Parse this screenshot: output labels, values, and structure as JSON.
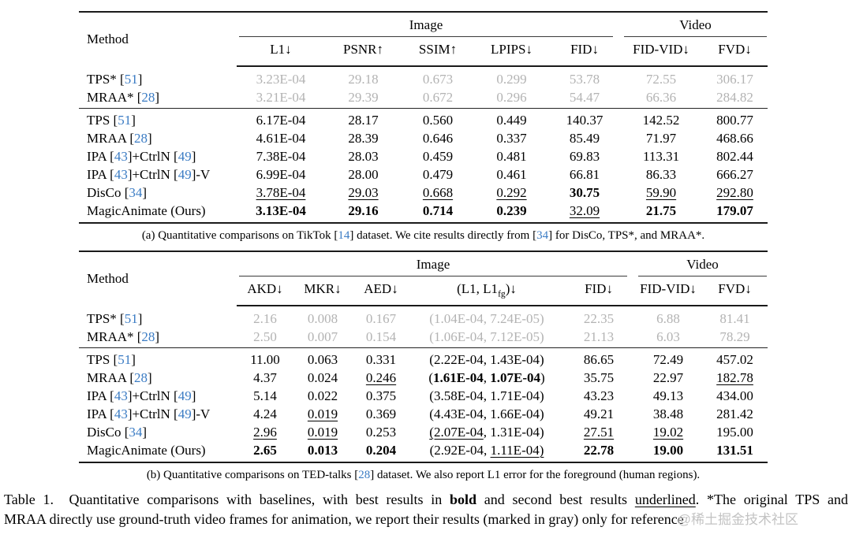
{
  "colors": {
    "cite_blue": "#3b7cc4",
    "gray_text": "#b3b3b3",
    "rule_dark": "#1a1a1a",
    "watermark_gray": "#c3c3c3"
  },
  "tables": [
    {
      "method_label": "Method",
      "group_image": "Image",
      "group_video": "Video",
      "columns": [
        [
          {
            "t": "L1↓"
          }
        ],
        [
          {
            "t": "PSNR↑"
          }
        ],
        [
          {
            "t": "SSIM↑"
          }
        ],
        [
          {
            "t": "LPIPS↓"
          }
        ],
        [
          {
            "t": "FID↓"
          }
        ],
        [
          {
            "t": "FID-VID↓"
          }
        ],
        [
          {
            "t": "FVD↓"
          }
        ]
      ],
      "rows_gray": [
        {
          "method": [
            {
              "t": "TPS* ["
            },
            {
              "t": "51",
              "cite": true
            },
            {
              "t": "]"
            }
          ],
          "cells": [
            [
              {
                "t": "3.23E-04"
              }
            ],
            [
              {
                "t": "29.18"
              }
            ],
            [
              {
                "t": "0.673"
              }
            ],
            [
              {
                "t": "0.299"
              }
            ],
            [
              {
                "t": "53.78"
              }
            ],
            [
              {
                "t": "72.55"
              }
            ],
            [
              {
                "t": "306.17"
              }
            ]
          ]
        },
        {
          "method": [
            {
              "t": "MRAA* ["
            },
            {
              "t": "28",
              "cite": true
            },
            {
              "t": "]"
            }
          ],
          "cells": [
            [
              {
                "t": "3.21E-04"
              }
            ],
            [
              {
                "t": "29.39"
              }
            ],
            [
              {
                "t": "0.672"
              }
            ],
            [
              {
                "t": "0.296"
              }
            ],
            [
              {
                "t": "54.47"
              }
            ],
            [
              {
                "t": "66.36"
              }
            ],
            [
              {
                "t": "284.82"
              }
            ]
          ]
        }
      ],
      "rows": [
        {
          "method": [
            {
              "t": "TPS ["
            },
            {
              "t": "51",
              "cite": true
            },
            {
              "t": "]"
            }
          ],
          "cells": [
            [
              {
                "t": "6.17E-04"
              }
            ],
            [
              {
                "t": "28.17"
              }
            ],
            [
              {
                "t": "0.560"
              }
            ],
            [
              {
                "t": "0.449"
              }
            ],
            [
              {
                "t": "140.37"
              }
            ],
            [
              {
                "t": "142.52"
              }
            ],
            [
              {
                "t": "800.77"
              }
            ]
          ]
        },
        {
          "method": [
            {
              "t": "MRAA ["
            },
            {
              "t": "28",
              "cite": true
            },
            {
              "t": "]"
            }
          ],
          "cells": [
            [
              {
                "t": "4.61E-04"
              }
            ],
            [
              {
                "t": "28.39"
              }
            ],
            [
              {
                "t": "0.646"
              }
            ],
            [
              {
                "t": "0.337"
              }
            ],
            [
              {
                "t": "85.49"
              }
            ],
            [
              {
                "t": "71.97"
              }
            ],
            [
              {
                "t": "468.66"
              }
            ]
          ]
        },
        {
          "method": [
            {
              "t": "IPA ["
            },
            {
              "t": "43",
              "cite": true
            },
            {
              "t": "]+CtrlN ["
            },
            {
              "t": "49",
              "cite": true
            },
            {
              "t": "]"
            }
          ],
          "cells": [
            [
              {
                "t": "7.38E-04"
              }
            ],
            [
              {
                "t": "28.03"
              }
            ],
            [
              {
                "t": "0.459"
              }
            ],
            [
              {
                "t": "0.481"
              }
            ],
            [
              {
                "t": "69.83"
              }
            ],
            [
              {
                "t": "113.31"
              }
            ],
            [
              {
                "t": "802.44"
              }
            ]
          ]
        },
        {
          "method": [
            {
              "t": "IPA ["
            },
            {
              "t": "43",
              "cite": true
            },
            {
              "t": "]+CtrlN ["
            },
            {
              "t": "49",
              "cite": true
            },
            {
              "t": "]-V"
            }
          ],
          "cells": [
            [
              {
                "t": "6.99E-04"
              }
            ],
            [
              {
                "t": "28.00"
              }
            ],
            [
              {
                "t": "0.479"
              }
            ],
            [
              {
                "t": "0.461"
              }
            ],
            [
              {
                "t": "66.81"
              }
            ],
            [
              {
                "t": "86.33"
              }
            ],
            [
              {
                "t": "666.27"
              }
            ]
          ]
        },
        {
          "method": [
            {
              "t": "DisCo ["
            },
            {
              "t": "34",
              "cite": true
            },
            {
              "t": "]"
            }
          ],
          "cells": [
            [
              {
                "t": "3.78E-04",
                "u": true
              }
            ],
            [
              {
                "t": "29.03",
                "u": true
              }
            ],
            [
              {
                "t": "0.668",
                "u": true
              }
            ],
            [
              {
                "t": "0.292",
                "u": true
              }
            ],
            [
              {
                "t": "30.75",
                "b": true
              }
            ],
            [
              {
                "t": "59.90",
                "u": true
              }
            ],
            [
              {
                "t": "292.80",
                "u": true
              }
            ]
          ]
        },
        {
          "method": [
            {
              "t": "MagicAnimate (Ours)"
            }
          ],
          "cells": [
            [
              {
                "t": "3.13E-04",
                "b": true
              }
            ],
            [
              {
                "t": "29.16",
                "b": true
              }
            ],
            [
              {
                "t": "0.714",
                "b": true
              }
            ],
            [
              {
                "t": "0.239",
                "b": true
              }
            ],
            [
              {
                "t": "32.09",
                "u": true
              }
            ],
            [
              {
                "t": "21.75",
                "b": true
              }
            ],
            [
              {
                "t": "179.07",
                "b": true
              }
            ]
          ]
        }
      ],
      "caption": [
        {
          "t": "(a) Quantitative comparisons on TikTok ["
        },
        {
          "t": "14",
          "cite": true
        },
        {
          "t": "] dataset. We cite results directly from ["
        },
        {
          "t": "34",
          "cite": true
        },
        {
          "t": "] for DisCo, TPS*, and MRAA*."
        }
      ]
    },
    {
      "method_label": "Method",
      "group_image": "Image",
      "group_video": "Video",
      "columns": [
        [
          {
            "t": "AKD↓"
          }
        ],
        [
          {
            "t": "MKR↓"
          }
        ],
        [
          {
            "t": "AED↓"
          }
        ],
        [
          {
            "t": "(L1, L1"
          },
          {
            "t": "fg",
            "sub": true
          },
          {
            "t": ")↓"
          }
        ],
        [
          {
            "t": "FID↓"
          }
        ],
        [
          {
            "t": "FID-VID↓"
          }
        ],
        [
          {
            "t": "FVD↓"
          }
        ]
      ],
      "rows_gray": [
        {
          "method": [
            {
              "t": "TPS* ["
            },
            {
              "t": "51",
              "cite": true
            },
            {
              "t": "]"
            }
          ],
          "cells": [
            [
              {
                "t": "2.16"
              }
            ],
            [
              {
                "t": "0.008"
              }
            ],
            [
              {
                "t": "0.167"
              }
            ],
            [
              {
                "t": "(1.04E-04, 7.24E-05)"
              }
            ],
            [
              {
                "t": "22.35"
              }
            ],
            [
              {
                "t": "6.88"
              }
            ],
            [
              {
                "t": "81.41"
              }
            ]
          ]
        },
        {
          "method": [
            {
              "t": "MRAA* ["
            },
            {
              "t": "28",
              "cite": true
            },
            {
              "t": "]"
            }
          ],
          "cells": [
            [
              {
                "t": "2.50"
              }
            ],
            [
              {
                "t": "0.007"
              }
            ],
            [
              {
                "t": "0.154"
              }
            ],
            [
              {
                "t": "(1.06E-04, 7.12E-05)"
              }
            ],
            [
              {
                "t": "21.13"
              }
            ],
            [
              {
                "t": "6.03"
              }
            ],
            [
              {
                "t": "78.29"
              }
            ]
          ]
        }
      ],
      "rows": [
        {
          "method": [
            {
              "t": "TPS ["
            },
            {
              "t": "51",
              "cite": true
            },
            {
              "t": "]"
            }
          ],
          "cells": [
            [
              {
                "t": "11.00"
              }
            ],
            [
              {
                "t": "0.063"
              }
            ],
            [
              {
                "t": "0.331"
              }
            ],
            [
              {
                "t": "(2.22E-04, 1.43E-04)"
              }
            ],
            [
              {
                "t": "86.65"
              }
            ],
            [
              {
                "t": "72.49"
              }
            ],
            [
              {
                "t": "457.02"
              }
            ]
          ]
        },
        {
          "method": [
            {
              "t": "MRAA ["
            },
            {
              "t": "28",
              "cite": true
            },
            {
              "t": "]"
            }
          ],
          "cells": [
            [
              {
                "t": "4.37"
              }
            ],
            [
              {
                "t": "0.024"
              }
            ],
            [
              {
                "t": "0.246",
                "u": true
              }
            ],
            [
              {
                "t": "("
              },
              {
                "t": "1.61E-04",
                "b": true
              },
              {
                "t": ", "
              },
              {
                "t": "1.07E-04",
                "b": true
              },
              {
                "t": ")"
              }
            ],
            [
              {
                "t": "35.75"
              }
            ],
            [
              {
                "t": "22.97"
              }
            ],
            [
              {
                "t": "182.78",
                "u": true
              }
            ]
          ]
        },
        {
          "method": [
            {
              "t": "IPA ["
            },
            {
              "t": "43",
              "cite": true
            },
            {
              "t": "]+CtrlN ["
            },
            {
              "t": "49",
              "cite": true
            },
            {
              "t": "]"
            }
          ],
          "cells": [
            [
              {
                "t": "5.14"
              }
            ],
            [
              {
                "t": "0.022"
              }
            ],
            [
              {
                "t": "0.375"
              }
            ],
            [
              {
                "t": "(3.58E-04, 1.71E-04)"
              }
            ],
            [
              {
                "t": "43.23"
              }
            ],
            [
              {
                "t": "49.13"
              }
            ],
            [
              {
                "t": "434.00"
              }
            ]
          ]
        },
        {
          "method": [
            {
              "t": "IPA ["
            },
            {
              "t": "43",
              "cite": true
            },
            {
              "t": "]+CtrlN ["
            },
            {
              "t": "49",
              "cite": true
            },
            {
              "t": "]-V"
            }
          ],
          "cells": [
            [
              {
                "t": "4.24"
              }
            ],
            [
              {
                "t": "0.019",
                "u": true
              }
            ],
            [
              {
                "t": "0.369"
              }
            ],
            [
              {
                "t": "(4.43E-04, 1.66E-04)"
              }
            ],
            [
              {
                "t": "49.21"
              }
            ],
            [
              {
                "t": "38.48"
              }
            ],
            [
              {
                "t": "281.42"
              }
            ]
          ]
        },
        {
          "method": [
            {
              "t": "DisCo ["
            },
            {
              "t": "34",
              "cite": true
            },
            {
              "t": "]"
            }
          ],
          "cells": [
            [
              {
                "t": "2.96",
                "u": true
              }
            ],
            [
              {
                "t": "0.019",
                "u": true
              }
            ],
            [
              {
                "t": "0.253"
              }
            ],
            [
              {
                "t": "(2.07E-04",
                "u": true
              },
              {
                "t": ", 1.31E-04)"
              }
            ],
            [
              {
                "t": "27.51",
                "u": true
              }
            ],
            [
              {
                "t": "19.02",
                "u": true
              }
            ],
            [
              {
                "t": "195.00"
              }
            ]
          ]
        },
        {
          "method": [
            {
              "t": "MagicAnimate (Ours)"
            }
          ],
          "cells": [
            [
              {
                "t": "2.65",
                "b": true
              }
            ],
            [
              {
                "t": "0.013",
                "b": true
              }
            ],
            [
              {
                "t": "0.204",
                "b": true
              }
            ],
            [
              {
                "t": "(2.92E-04, "
              },
              {
                "t": "1.11E-04)",
                "u": true
              }
            ],
            [
              {
                "t": "22.78",
                "b": true
              }
            ],
            [
              {
                "t": "19.00",
                "b": true
              }
            ],
            [
              {
                "t": "131.51",
                "b": true
              }
            ]
          ]
        }
      ],
      "caption": [
        {
          "t": "(b) Quantitative comparisons on TED-talks ["
        },
        {
          "t": "28",
          "cite": true
        },
        {
          "t": "] dataset. We also report L1 error for the foreground (human regions)."
        }
      ]
    }
  ],
  "main_caption": {
    "line1": [
      {
        "t": "Table 1.  Quantitative comparisons with baselines, with best results in "
      },
      {
        "t": "bold",
        "b": true
      },
      {
        "t": " and second best results "
      },
      {
        "t": "underlined",
        "u": true
      },
      {
        "t": ". *The original TPS and"
      }
    ],
    "line2": [
      {
        "t": "MRAA directly use ground-truth video frames for animation, we report their results (marked in gray) only for reference"
      }
    ],
    "watermark": "@稀土掘金技术社区"
  }
}
